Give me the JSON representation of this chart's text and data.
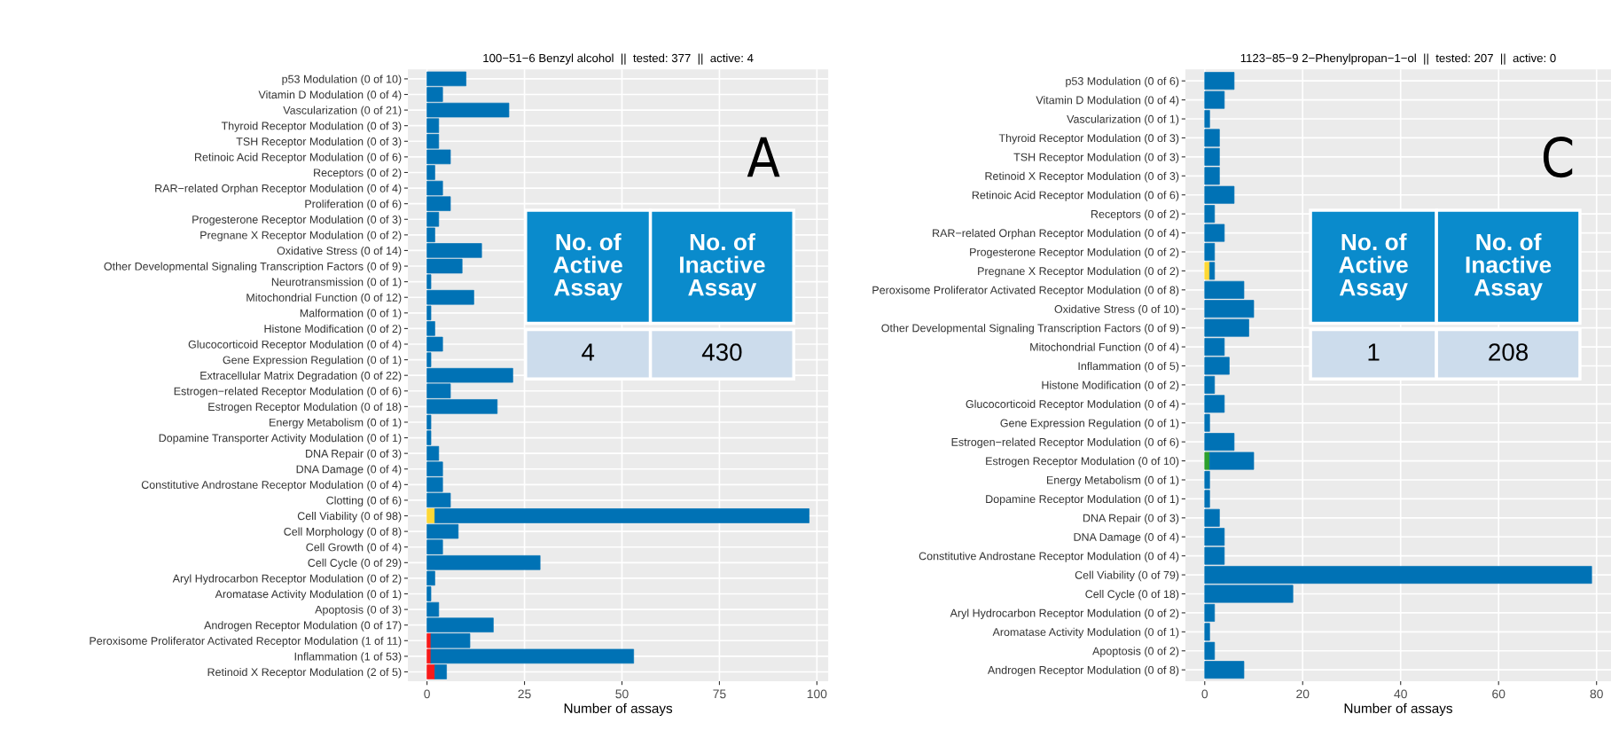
{
  "chart_data": [
    {
      "type": "bar",
      "orientation": "horizontal",
      "stacked": true,
      "title": "100−51−6 Benzyl alcohol  ||  tested: 377  ||  active: 4",
      "xlabel": "Number of assays",
      "categories": [
        "p53 Modulation (0 of 10)",
        "Vitamin D Modulation (0 of 4)",
        "Vascularization (0 of 21)",
        "Thyroid Receptor Modulation (0 of 3)",
        "TSH Receptor Modulation (0 of 3)",
        "Retinoic Acid Receptor Modulation (0 of 6)",
        "Receptors (0 of 2)",
        "RAR−related Orphan Receptor Modulation (0 of 4)",
        "Proliferation (0 of 6)",
        "Progesterone Receptor Modulation (0 of 3)",
        "Pregnane X Receptor Modulation (0 of 2)",
        "Oxidative Stress (0 of 14)",
        "Other Developmental Signaling Transcription Factors (0 of 9)",
        "Neurotransmission (0 of 1)",
        "Mitochondrial Function (0 of 12)",
        "Malformation (0 of 1)",
        "Histone Modification (0 of 2)",
        "Glucocorticoid Receptor Modulation (0 of 4)",
        "Gene Expression Regulation (0 of 1)",
        "Extracellular Matrix Degradation (0 of 22)",
        "Estrogen−related Receptor Modulation (0 of 6)",
        "Estrogen Receptor Modulation (0 of 18)",
        "Energy Metabolism (0 of 1)",
        "Dopamine Transporter Activity Modulation (0 of 1)",
        "DNA Repair (0 of 3)",
        "DNA Damage (0 of 4)",
        "Constitutive Androstane Receptor Modulation (0 of 4)",
        "Clotting (0 of 6)",
        "Cell Viability (0 of 98)",
        "Cell Morphology (0 of 8)",
        "Cell Growth (0 of 4)",
        "Cell Cycle (0 of 29)",
        "Aryl Hydrocarbon Receptor Modulation (0 of 2)",
        "Aromatase Activity Modulation (0 of 1)",
        "Apoptosis (0 of 3)",
        "Androgen Receptor Modulation (0 of 17)",
        "Peroxisome Proliferator Activated Receptor Modulation (1 of 11)",
        "Inflammation (1 of 53)",
        "Retinoid X Receptor Modulation (2 of 5)"
      ],
      "series": [
        {
          "color": "#f81a1a",
          "values": [
            null,
            null,
            null,
            null,
            null,
            null,
            null,
            null,
            null,
            null,
            null,
            null,
            null,
            null,
            null,
            null,
            null,
            null,
            null,
            null,
            null,
            null,
            null,
            null,
            null,
            null,
            null,
            null,
            null,
            null,
            null,
            null,
            null,
            null,
            null,
            null,
            1,
            1,
            2
          ]
        },
        {
          "color": "#fdd835",
          "values": [
            null,
            null,
            null,
            null,
            null,
            null,
            null,
            null,
            null,
            null,
            null,
            null,
            null,
            null,
            null,
            null,
            null,
            null,
            null,
            null,
            null,
            null,
            null,
            null,
            null,
            null,
            null,
            null,
            2,
            null,
            null,
            null,
            null,
            null,
            null,
            null,
            null,
            null,
            null
          ]
        },
        {
          "color": "#0072b5",
          "values": [
            10,
            4,
            21,
            3,
            3,
            6,
            2,
            4,
            6,
            3,
            2,
            14,
            9,
            1,
            12,
            1,
            2,
            4,
            1,
            22,
            6,
            18,
            1,
            1,
            3,
            4,
            4,
            6,
            96,
            8,
            4,
            29,
            2,
            1,
            3,
            17,
            10,
            52,
            3
          ]
        }
      ],
      "xlim": [
        -4.9,
        102.9
      ],
      "xticks": [
        0,
        25,
        50,
        75,
        100
      ],
      "grid": true,
      "annotations": [
        "A",
        "No. of\nActive\nAssay",
        "No. of\nInactive\nAssay",
        "4",
        "430"
      ]
    },
    {
      "type": "bar",
      "orientation": "horizontal",
      "stacked": true,
      "title": "1123−85−9 2−Phenylpropan−1−ol  ||  tested: 207  ||  active: 0",
      "xlabel": "Number of assays",
      "categories": [
        "p53 Modulation (0 of 6)",
        "Vitamin D Modulation (0 of 4)",
        "Vascularization (0 of 1)",
        "Thyroid Receptor Modulation (0 of 3)",
        "TSH Receptor Modulation (0 of 3)",
        "Retinoid X Receptor Modulation (0 of 3)",
        "Retinoic Acid Receptor Modulation (0 of 6)",
        "Receptors (0 of 2)",
        "RAR−related Orphan Receptor Modulation (0 of 4)",
        "Progesterone Receptor Modulation (0 of 2)",
        "Pregnane X Receptor Modulation (0 of 2)",
        "Peroxisome Proliferator Activated Receptor Modulation (0 of 8)",
        "Oxidative Stress (0 of 10)",
        "Other Developmental Signaling Transcription Factors (0 of 9)",
        "Mitochondrial Function (0 of 4)",
        "Inflammation (0 of 5)",
        "Histone Modification (0 of 2)",
        "Glucocorticoid Receptor Modulation (0 of 4)",
        "Gene Expression Regulation (0 of 1)",
        "Estrogen−related Receptor Modulation (0 of 6)",
        "Estrogen Receptor Modulation (0 of 10)",
        "Energy Metabolism (0 of 1)",
        "Dopamine Receptor Modulation (0 of 1)",
        "DNA Repair (0 of 3)",
        "DNA Damage (0 of 4)",
        "Constitutive Androstane Receptor Modulation (0 of 4)",
        "Cell Viability (0 of 79)",
        "Cell Cycle (0 of 18)",
        "Aryl Hydrocarbon Receptor Modulation (0 of 2)",
        "Aromatase Activity Modulation (0 of 1)",
        "Apoptosis (0 of 2)",
        "Androgen Receptor Modulation (0 of 8)"
      ],
      "series": [
        {
          "color": "#fdd835",
          "values": [
            null,
            null,
            null,
            null,
            null,
            null,
            null,
            null,
            null,
            null,
            1,
            null,
            null,
            null,
            null,
            null,
            null,
            null,
            null,
            null,
            null,
            null,
            null,
            null,
            null,
            null,
            null,
            null,
            null,
            null,
            null,
            null
          ]
        },
        {
          "color": "#2ca02c",
          "values": [
            null,
            null,
            null,
            null,
            null,
            null,
            null,
            null,
            null,
            null,
            null,
            null,
            null,
            null,
            null,
            null,
            null,
            null,
            null,
            null,
            1,
            null,
            null,
            null,
            null,
            null,
            null,
            null,
            null,
            null,
            null,
            null
          ]
        },
        {
          "color": "#0072b5",
          "values": [
            6,
            4,
            1,
            3,
            3,
            3,
            6,
            2,
            4,
            2,
            1,
            8,
            10,
            9,
            4,
            5,
            2,
            4,
            1,
            6,
            9,
            1,
            1,
            3,
            4,
            4,
            79,
            18,
            2,
            1,
            2,
            8
          ]
        }
      ],
      "xlim": [
        -3.95,
        82.95
      ],
      "xticks": [
        0,
        20,
        40,
        60,
        80
      ],
      "grid": true,
      "annotations": [
        "C",
        "No. of\nActive\nAssay",
        "No. of\nInactive\nAssay",
        "1",
        "208"
      ]
    }
  ]
}
